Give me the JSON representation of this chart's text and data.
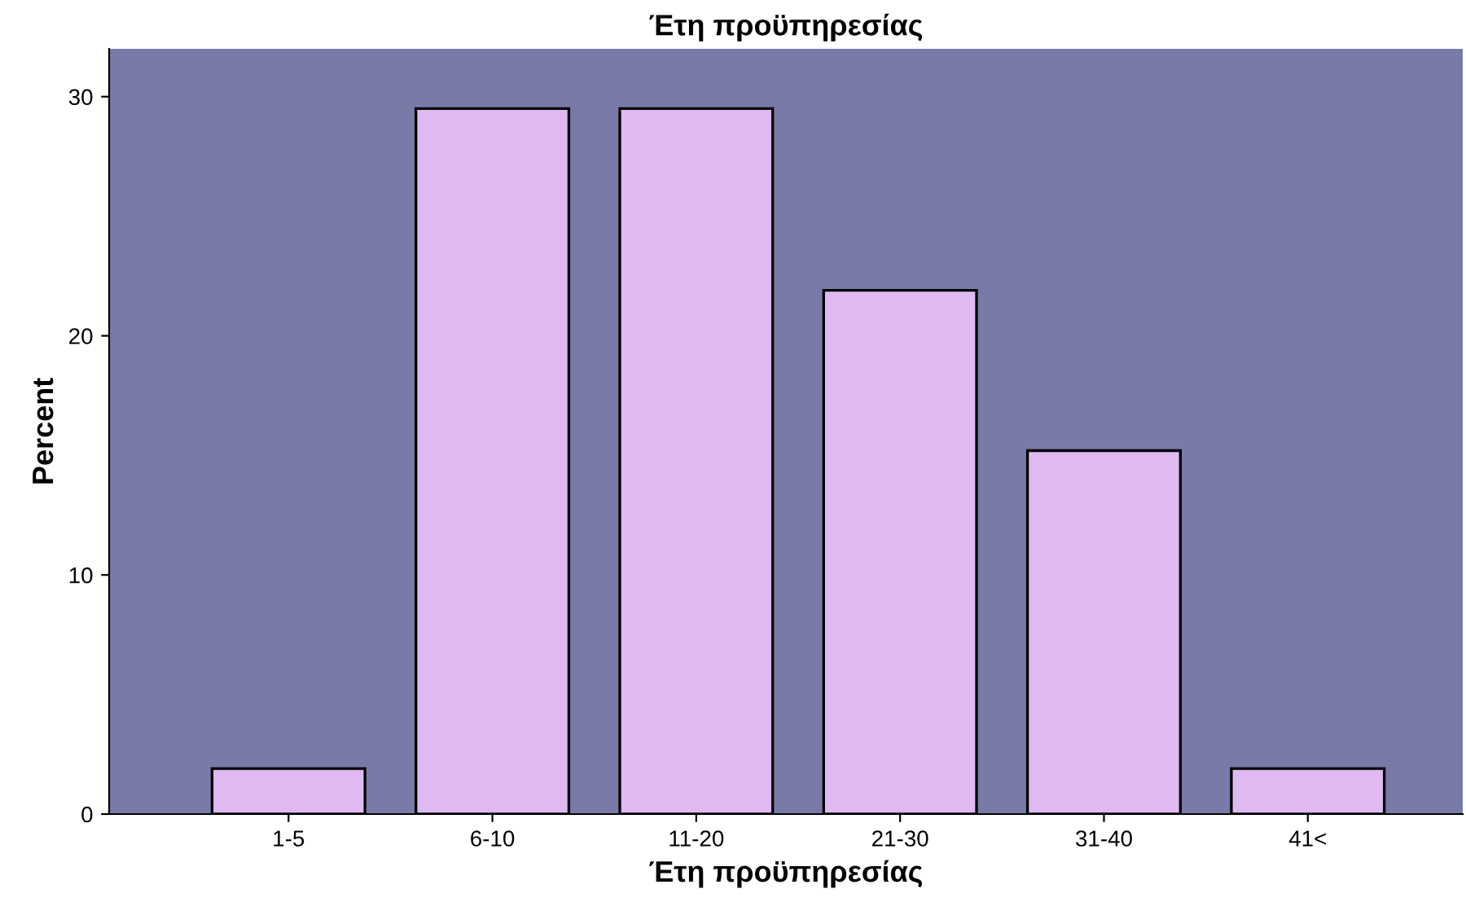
{
  "chart_data": {
    "type": "bar",
    "title": "Έτη προϋπηρεσίας",
    "xlabel": "Έτη προϋπηρεσίας",
    "ylabel": "Percent",
    "categories": [
      "1-5",
      "6-10",
      "11-20",
      "21-30",
      "31-40",
      "41<"
    ],
    "values": [
      1.9,
      29.5,
      29.5,
      21.9,
      15.2,
      1.9
    ],
    "color": "#dfbaf2",
    "ylim": [
      0,
      32
    ],
    "yticks": [
      0,
      10,
      20,
      30
    ],
    "grid": false,
    "legend": false
  }
}
